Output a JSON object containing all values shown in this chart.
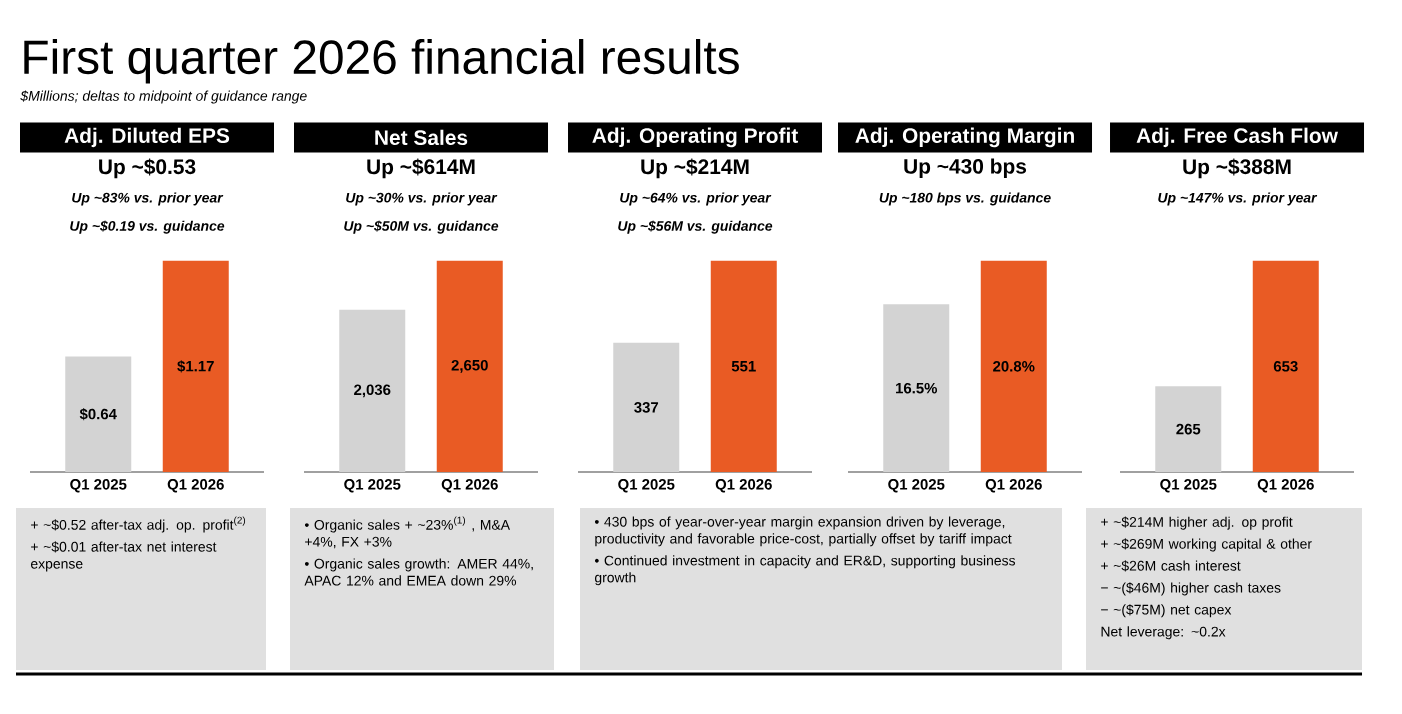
{
  "chart_data": [
    {
      "type": "other",
      "title": "First quarter 2026 financial results",
      "subtitle": "$Millions; deltas to midpoint of guidance range"
    },
    {
      "type": "bar",
      "title": "Adj. Diluted EPS",
      "subtitle": "Up ~$0.53",
      "annotations": [
        "Up ~83% vs. prior year",
        "Up ~$0.19 vs. guidance"
      ],
      "categories": [
        "Q1 2025",
        "Q1 2026"
      ],
      "values": [
        0.64,
        1.17
      ],
      "colors": [
        "#d3d3d3",
        "#e95b24"
      ],
      "value_labels": [
        "$0.64",
        "$1.17"
      ],
      "tick_labels": "x"
    },
    {
      "type": "bar",
      "title": "Net Sales",
      "subtitle": "Up ~$614M",
      "annotations": [
        "Up ~30% vs. prior year",
        "Up ~$50M vs. guidance"
      ],
      "categories": [
        "Q1 2025",
        "Q1 2026"
      ],
      "values": [
        2036,
        2650
      ],
      "colors": [
        "#d3d3d3",
        "#e95b24"
      ],
      "value_labels": [
        "2,036",
        "2,650"
      ],
      "tick_labels": "x"
    },
    {
      "type": "bar",
      "title": "Adj. Operating Profit",
      "subtitle": "Up ~$214M",
      "annotations": [
        "Up ~64% vs. prior year",
        "Up ~$56M vs. guidance"
      ],
      "categories": [
        "Q1 2025",
        "Q1 2026"
      ],
      "values": [
        337,
        551
      ],
      "colors": [
        "#d3d3d3",
        "#e95b24"
      ],
      "value_labels": [
        "337",
        "551"
      ],
      "tick_labels": "x"
    },
    {
      "type": "bar",
      "title": "Adj. Operating Margin",
      "subtitle": "Up ~430 bps",
      "annotations": [
        "Up ~180 bps vs. guidance"
      ],
      "categories": [
        "Q1 2025",
        "Q1 2026"
      ],
      "values": [
        16.5,
        20.8
      ],
      "colors": [
        "#d3d3d3",
        "#e95b24"
      ],
      "value_labels": [
        "16.5%",
        "20.8%"
      ],
      "tick_labels": "x"
    },
    {
      "type": "bar",
      "title": "Adj. Free Cash Flow",
      "subtitle": "Up ~$388M",
      "annotations": [
        "Up ~147% vs. prior year"
      ],
      "categories": [
        "Q1 2025",
        "Q1 2026"
      ],
      "values": [
        265,
        653
      ],
      "colors": [
        "#d3d3d3",
        "#e95b24"
      ],
      "value_labels": [
        "265",
        "653"
      ],
      "tick_labels": "x"
    },
    {
      "type": "other",
      "annotations": [
        "+ ~$0.52 after-tax adj. op. profit$^{(2)}$",
        "+ ~$0.01 after-tax net interest expense"
      ]
    },
    {
      "type": "other",
      "annotations": [
        "• Organic sales + ~23%$^{(1)}$ , M&A +4%, FX +3%",
        "• Organic sales growth: AMER 44%, APAC 12% and EMEA down 29%"
      ]
    },
    {
      "type": "other",
      "annotations": [
        "• 430 bps of year-over-year margin expansion driven by leverage, productivity and favorable price-cost, partially offset by tariff impact",
        "• Continued investment in capacity and ER&D, supporting business growth"
      ]
    },
    {
      "type": "other",
      "annotations": [
        "+ ~$214M higher adj. op profit",
        "+ ~$269M working capital & other",
        "+ ~$26M cash interest",
        "− ~($46M) higher cash taxes",
        "− ~($75M) net capex",
        "Net leverage:  ~0.2x"
      ]
    }
  ]
}
